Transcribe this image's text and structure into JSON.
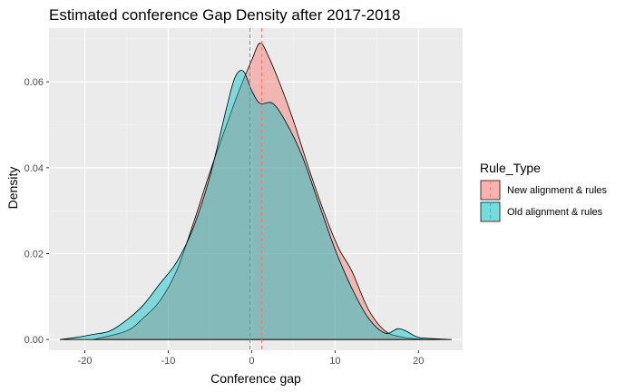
{
  "chart_data": {
    "type": "area",
    "title": "Estimated conference Gap Density after 2017-2018",
    "xlabel": "Conference gap",
    "ylabel": "Density",
    "xlim": [
      -24.3,
      25.3
    ],
    "ylim": [
      -0.0025,
      0.0725
    ],
    "x_ticks": [
      -20,
      -10,
      0,
      10,
      20
    ],
    "x_tick_labels": [
      "-20",
      "-10",
      "0",
      "10",
      "20"
    ],
    "y_ticks": [
      0.0,
      0.02,
      0.04,
      0.06
    ],
    "y_tick_labels": [
      "0.00",
      "0.02",
      "0.04",
      "0.06"
    ],
    "grid": true,
    "legend": {
      "title": "Rule_Type",
      "position": "right"
    },
    "series": [
      {
        "name": "New alignment & rules",
        "color": "#F8766D",
        "mean": 1.2,
        "x": [
          -19.0,
          -15.0,
          -13.0,
          -11.0,
          -9.0,
          -7.0,
          -5.0,
          -3.0,
          -1.5,
          0.0,
          1.0,
          2.0,
          3.5,
          5.0,
          7.0,
          9.0,
          10.5,
          12.0,
          14.0,
          16.0,
          18.0,
          20.0,
          22.0
        ],
        "y": [
          0.0,
          0.002,
          0.005,
          0.009,
          0.016,
          0.027,
          0.039,
          0.05,
          0.058,
          0.065,
          0.069,
          0.066,
          0.059,
          0.051,
          0.039,
          0.028,
          0.021,
          0.016,
          0.007,
          0.002,
          0.0006,
          0.0001,
          0.0
        ]
      },
      {
        "name": "Old alignment & rules",
        "color": "#00BFC4",
        "mean": -0.2,
        "x": [
          -23.0,
          -21.0,
          -19.0,
          -17.0,
          -15.0,
          -13.0,
          -11.0,
          -9.0,
          -7.0,
          -5.0,
          -3.0,
          -2.0,
          -1.0,
          0.0,
          1.0,
          2.5,
          4.0,
          6.0,
          8.0,
          10.0,
          12.0,
          14.0,
          16.0,
          17.5,
          18.5,
          20.0,
          22.0,
          24.0
        ],
        "y": [
          0.0,
          0.0005,
          0.0012,
          0.002,
          0.0045,
          0.008,
          0.013,
          0.018,
          0.026,
          0.038,
          0.054,
          0.061,
          0.0625,
          0.058,
          0.055,
          0.055,
          0.051,
          0.043,
          0.032,
          0.021,
          0.012,
          0.005,
          0.0015,
          0.0025,
          0.002,
          0.0005,
          0.0002,
          0.0
        ]
      }
    ]
  }
}
